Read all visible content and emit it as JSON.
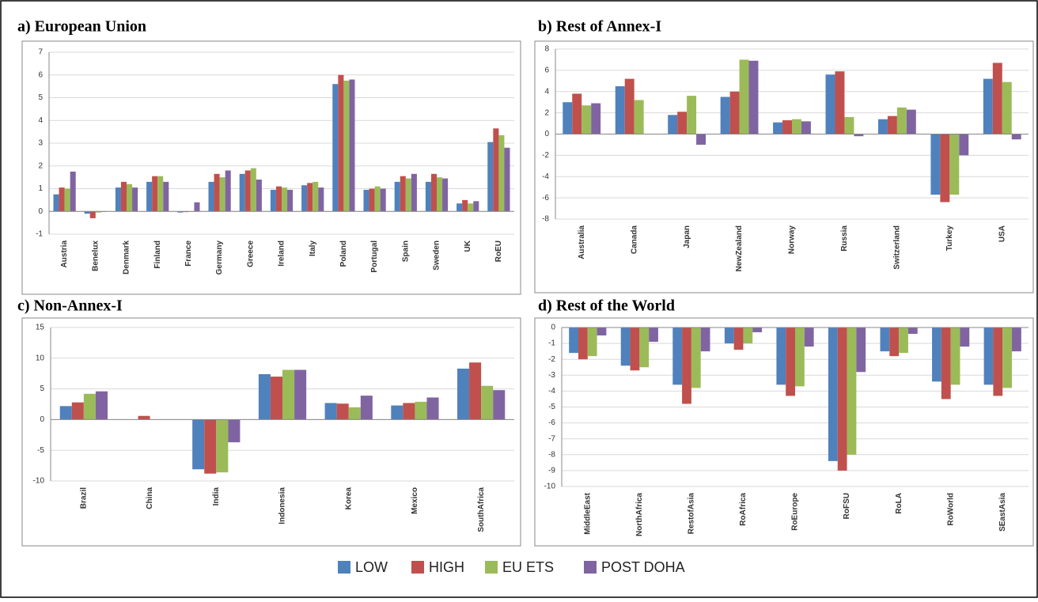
{
  "chart_data": [
    {
      "type": "bar",
      "title": "a) European Union",
      "categories": [
        "Austria",
        "Benelux",
        "Denmark",
        "Finland",
        "France",
        "Germany",
        "Greece",
        "Ireland",
        "Italy",
        "Poland",
        "Portugal",
        "Spain",
        "Sweden",
        "UK",
        "RoEU"
      ],
      "series": [
        {
          "name": "LOW",
          "color": "#4f81bd",
          "values": [
            0.75,
            -0.1,
            1.05,
            1.3,
            -0.05,
            1.3,
            1.65,
            0.95,
            1.15,
            5.6,
            0.95,
            1.3,
            1.3,
            0.35,
            3.05
          ]
        },
        {
          "name": "HIGH",
          "color": "#c0504d",
          "values": [
            1.05,
            -0.3,
            1.3,
            1.55,
            -0.03,
            1.65,
            1.8,
            1.1,
            1.25,
            6.0,
            1.0,
            1.55,
            1.65,
            0.5,
            3.65
          ]
        },
        {
          "name": "EU ETS",
          "color": "#9bbb59",
          "values": [
            1.0,
            -0.05,
            1.2,
            1.55,
            -0.02,
            1.5,
            1.9,
            1.05,
            1.3,
            5.75,
            1.1,
            1.45,
            1.5,
            0.35,
            3.35
          ]
        },
        {
          "name": "POST DOHA",
          "color": "#8064a2",
          "values": [
            1.75,
            -0.02,
            1.05,
            1.3,
            0.4,
            1.8,
            1.4,
            0.95,
            1.05,
            5.8,
            1.0,
            1.65,
            1.45,
            0.45,
            2.8
          ]
        }
      ],
      "ylim": [
        -1,
        7
      ],
      "yticks": [
        -1,
        0,
        1,
        2,
        3,
        4,
        5,
        6,
        7
      ],
      "grid": true
    },
    {
      "type": "bar",
      "title": "b) Rest of Annex-I",
      "categories": [
        "Australia",
        "Canada",
        "Japan",
        "NewZealand",
        "Norway",
        "Russia",
        "Switzerland",
        "Turkey",
        "USA"
      ],
      "series": [
        {
          "name": "LOW",
          "color": "#4f81bd",
          "values": [
            3.0,
            4.5,
            1.8,
            3.5,
            1.1,
            5.6,
            1.4,
            -5.7,
            5.2
          ]
        },
        {
          "name": "HIGH",
          "color": "#c0504d",
          "values": [
            3.8,
            5.2,
            2.1,
            4.0,
            1.3,
            5.9,
            1.7,
            -6.4,
            6.7
          ]
        },
        {
          "name": "EU ETS",
          "color": "#9bbb59",
          "values": [
            2.7,
            3.2,
            3.6,
            7.0,
            1.4,
            1.6,
            2.5,
            -5.7,
            4.9
          ]
        },
        {
          "name": "POST DOHA",
          "color": "#8064a2",
          "values": [
            2.9,
            0,
            -1.0,
            6.9,
            1.2,
            -0.2,
            2.3,
            -2.0,
            -0.5
          ]
        }
      ],
      "ylim": [
        -8,
        8
      ],
      "yticks": [
        -8,
        -6,
        -4,
        -2,
        0,
        2,
        4,
        6,
        8
      ],
      "grid": true
    },
    {
      "type": "bar",
      "title": "c) Non-Annex-I",
      "categories": [
        "Brazil",
        "China",
        "India",
        "Indonesia",
        "Korea",
        "Mexico",
        "SouthAfrica"
      ],
      "series": [
        {
          "name": "LOW",
          "color": "#4f81bd",
          "values": [
            2.2,
            0,
            -8.1,
            7.4,
            2.7,
            2.3,
            8.3
          ]
        },
        {
          "name": "HIGH",
          "color": "#c0504d",
          "values": [
            2.8,
            0.6,
            -8.8,
            7.0,
            2.6,
            2.7,
            9.3
          ]
        },
        {
          "name": "EU ETS",
          "color": "#9bbb59",
          "values": [
            4.2,
            0,
            -8.6,
            8.1,
            2.0,
            2.9,
            5.5
          ]
        },
        {
          "name": "POST DOHA",
          "color": "#8064a2",
          "values": [
            4.6,
            0,
            -3.7,
            8.1,
            3.9,
            3.6,
            4.8
          ]
        }
      ],
      "ylim": [
        -10,
        15
      ],
      "yticks": [
        -10,
        -5,
        0,
        5,
        10,
        15
      ],
      "grid": true
    },
    {
      "type": "bar",
      "title": "d) Rest of the World",
      "categories": [
        "MiddleEast",
        "NorthAfrica",
        "RestofAsia",
        "RoAfrica",
        "RoEurope",
        "RoFSU",
        "RoLA",
        "RoWorld",
        "SEastAsia"
      ],
      "series": [
        {
          "name": "LOW",
          "color": "#4f81bd",
          "values": [
            -1.6,
            -2.4,
            -3.6,
            -1.0,
            -3.6,
            -8.4,
            -1.5,
            -3.4,
            -3.6
          ]
        },
        {
          "name": "HIGH",
          "color": "#c0504d",
          "values": [
            -2.0,
            -2.7,
            -4.8,
            -1.4,
            -4.3,
            -9.0,
            -1.8,
            -4.5,
            -4.3
          ]
        },
        {
          "name": "EU ETS",
          "color": "#9bbb59",
          "values": [
            -1.8,
            -2.5,
            -3.8,
            -1.0,
            -3.7,
            -8.0,
            -1.6,
            -3.6,
            -3.8
          ]
        },
        {
          "name": "POST DOHA",
          "color": "#8064a2",
          "values": [
            -0.5,
            -0.9,
            -1.5,
            -0.3,
            -1.2,
            -2.8,
            -0.4,
            -1.2,
            -1.5
          ]
        }
      ],
      "ylim": [
        -10,
        0
      ],
      "yticks": [
        -10,
        -9,
        -8,
        -7,
        -6,
        -5,
        -4,
        -3,
        -2,
        -1,
        0
      ],
      "grid": true
    }
  ]
}
